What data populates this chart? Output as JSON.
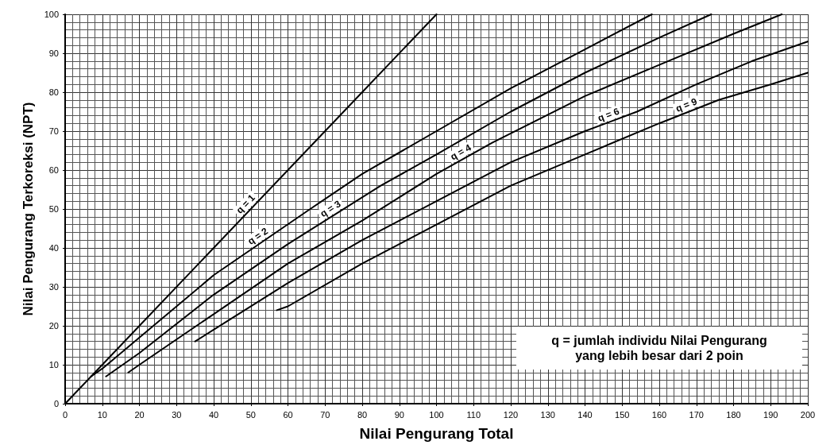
{
  "chart_data": {
    "type": "line",
    "xlabel": "Nilai Pengurang Total",
    "ylabel": "Nilai Pengurang Terkoreksi (NPT)",
    "xlim": [
      0,
      200
    ],
    "xticks": [
      0,
      10,
      20,
      30,
      40,
      50,
      60,
      70,
      80,
      90,
      100,
      110,
      120,
      130,
      140,
      150,
      160,
      170,
      180,
      190,
      200
    ],
    "ylim": [
      0,
      100
    ],
    "yticks": [
      0,
      10,
      20,
      30,
      40,
      50,
      60,
      70,
      80,
      90,
      100
    ],
    "grid": true,
    "legend": false,
    "marker": "none",
    "line_style": "solid",
    "annotations": [
      "q = jumlah individu Nilai Pengurang yang lebih besar dari 2 poin"
    ],
    "series": [
      {
        "name": "q = 1",
        "color": "#000000",
        "x": [
          0,
          10,
          20,
          40,
          60,
          80,
          100
        ],
        "values": [
          0,
          10,
          20,
          40,
          60,
          80,
          100
        ]
      },
      {
        "name": "q = 2",
        "color": "#000000",
        "x": [
          7,
          10,
          20,
          40,
          66,
          80,
          100,
          120,
          140,
          158
        ],
        "values": [
          7,
          9,
          17,
          33,
          50,
          59,
          70,
          81,
          91,
          100
        ]
      },
      {
        "name": "q = 3",
        "color": "#000000",
        "x": [
          11,
          20,
          40,
          60,
          85,
          100,
          120,
          140,
          160,
          174
        ],
        "values": [
          7,
          13,
          28,
          41,
          56,
          64,
          75,
          85,
          94,
          100
        ]
      },
      {
        "name": "q = 4",
        "color": "#000000",
        "x": [
          17,
          20,
          40,
          60,
          80,
          100,
          115,
          140,
          160,
          180,
          193
        ],
        "values": [
          8,
          10,
          23,
          36,
          47,
          59,
          67,
          79,
          87,
          95,
          100
        ]
      },
      {
        "name": "q = 6",
        "color": "#000000",
        "x": [
          35,
          40,
          60,
          80,
          100,
          120,
          140,
          154,
          170,
          185,
          200
        ],
        "values": [
          16,
          19,
          31,
          42,
          52,
          62,
          70,
          75,
          82,
          88,
          93
        ]
      },
      {
        "name": "q = 9",
        "color": "#000000",
        "x": [
          57,
          60,
          80,
          100,
          120,
          140,
          160,
          176,
          190,
          200
        ],
        "values": [
          24,
          25,
          36,
          46,
          56,
          64,
          72,
          78,
          82,
          85
        ]
      }
    ]
  }
}
